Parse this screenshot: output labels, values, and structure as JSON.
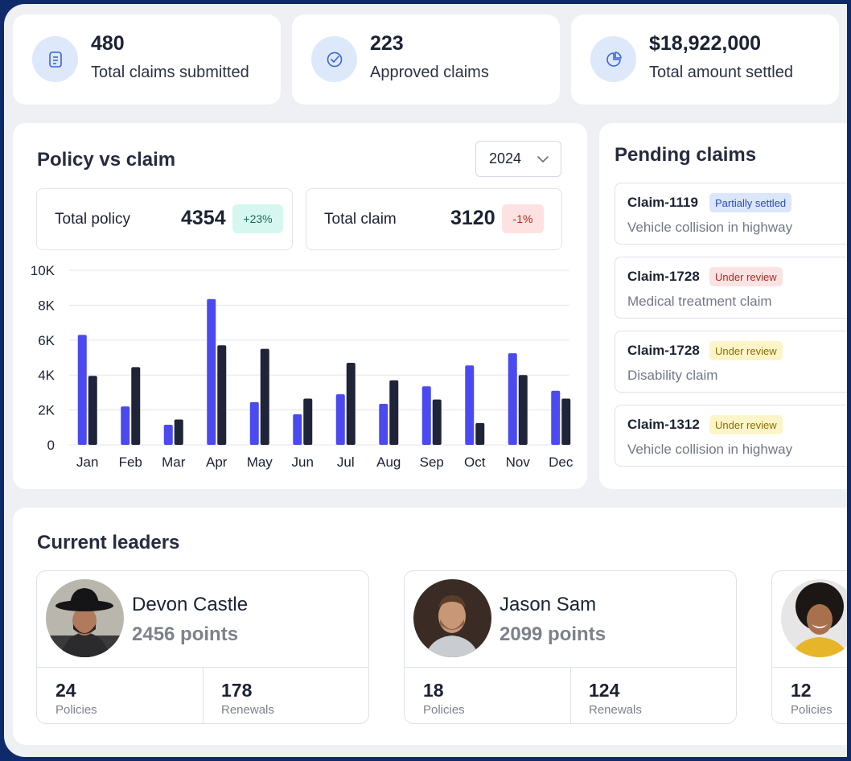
{
  "stats": [
    {
      "value": "480",
      "label": "Total claims submitted",
      "icon": "document-icon"
    },
    {
      "value": "223",
      "label": "Approved claims",
      "icon": "check-circle-icon"
    },
    {
      "value": "$18,922,000",
      "label": "Total amount settled",
      "icon": "pie-chart-icon"
    }
  ],
  "policy_claim": {
    "title": "Policy vs claim",
    "year": "2024",
    "total_policy": {
      "label": "Total policy",
      "value": "4354",
      "change": "+23%"
    },
    "total_claim": {
      "label": "Total claim",
      "value": "3120",
      "change": "-1%"
    }
  },
  "chart_data": {
    "type": "bar",
    "categories": [
      "Jan",
      "Feb",
      "Mar",
      "Apr",
      "May",
      "Jun",
      "Jul",
      "Aug",
      "Sep",
      "Oct",
      "Nov",
      "Dec"
    ],
    "series": [
      {
        "values": [
          6300,
          2200,
          1150,
          8350,
          2450,
          1750,
          2900,
          2350,
          3350,
          4550,
          5250,
          3100
        ],
        "color": "#4b4af0"
      },
      {
        "values": [
          3950,
          4450,
          1450,
          5700,
          5500,
          2650,
          4700,
          3700,
          2600,
          1250,
          4000,
          2650
        ],
        "color": "#1f2438"
      }
    ],
    "yticks": [
      "10K",
      "8K",
      "6K",
      "4K",
      "2K",
      "0"
    ],
    "ylim": [
      0,
      10000
    ],
    "grid": true
  },
  "pending": {
    "title": "Pending claims",
    "claims": [
      {
        "id": "Claim-1119",
        "status": "Partially settled",
        "desc": "Vehicle collision in highway"
      },
      {
        "id": "Claim-1728",
        "status": "Under review",
        "desc": "Medical treatment claim"
      },
      {
        "id": "Claim-1728",
        "status": "Under review",
        "desc": "Disability claim"
      },
      {
        "id": "Claim-1312",
        "status": "Under review",
        "desc": "Vehicle collision in highway"
      }
    ],
    "colors": {
      "partial_bg": "#dce6fb",
      "partial_fg": "#2a4fb0",
      "review_red_bg": "#fce3e3",
      "review_red_fg": "#b3261e",
      "review_yellow_bg": "#fdf5c8",
      "review_yellow_fg": "#8a6d00"
    }
  },
  "leaders": {
    "title": "Current leaders",
    "people": [
      {
        "name": "Devon Castle",
        "points": "2456 points",
        "policies": "24",
        "policies_label": "Policies",
        "renewals": "178",
        "renewals_label": "Renewals"
      },
      {
        "name": "Jason Sam",
        "points": "2099 points",
        "policies": "18",
        "policies_label": "Policies",
        "renewals": "124",
        "renewals_label": "Renewals"
      },
      {
        "policies": "12",
        "policies_label": "Policies"
      }
    ]
  }
}
